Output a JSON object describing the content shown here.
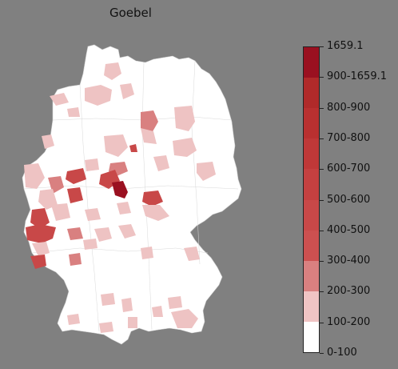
{
  "title": "Goebel",
  "legend": {
    "labels": [
      "0-100",
      "100-200",
      "200-300",
      "300-400",
      "400-500",
      "500-600",
      "600-700",
      "700-800",
      "800-900",
      "900-1659.1",
      "1659.1"
    ],
    "colors": [
      "#ffffff",
      "#f0c4c4",
      "#d98080",
      "#cc5050",
      "#c84848",
      "#c44040",
      "#bf3838",
      "#b93030",
      "#b02a2a",
      "#9a1020"
    ]
  },
  "map_colors": {
    "base": "#ffffff",
    "border": "#bdbdbd",
    "low": "#eec3c3",
    "mid": "#d98080",
    "high": "#c84848",
    "max": "#9a1020"
  }
}
